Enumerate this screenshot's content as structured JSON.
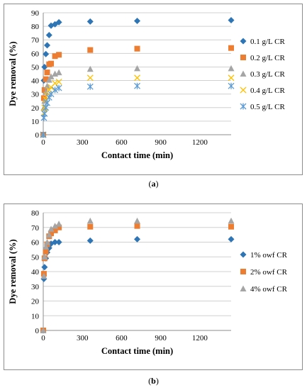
{
  "captions": {
    "a": "a",
    "b": "b"
  },
  "chart_data": [
    {
      "type": "scatter",
      "xlabel": "Contact time (min)",
      "ylabel": "Dye removal (%)",
      "xlim": [
        0,
        1440
      ],
      "ylim": [
        0,
        90
      ],
      "xticks": [
        0,
        300,
        600,
        900,
        1200
      ],
      "yticks": [
        0,
        10,
        20,
        30,
        40,
        50,
        60,
        70,
        80,
        90
      ],
      "grid": "horizontal",
      "legend": "right",
      "series": [
        {
          "name": "0.1 g/L CR",
          "marker": "diamond",
          "color": "#2e75b6",
          "x": [
            0,
            5,
            10,
            20,
            30,
            45,
            60,
            90,
            120,
            360,
            720,
            1440
          ],
          "y": [
            0,
            40,
            50,
            59.5,
            66,
            73.5,
            80.5,
            81.5,
            83,
            83.5,
            84,
            84.5
          ]
        },
        {
          "name": "0.2 g/L CR",
          "marker": "square",
          "color": "#ed7d31",
          "x": [
            0,
            5,
            10,
            20,
            30,
            45,
            60,
            90,
            120,
            360,
            720,
            1440
          ],
          "y": [
            0,
            27,
            33,
            41,
            46,
            52,
            52.5,
            58,
            59,
            62.5,
            63.5,
            64
          ]
        },
        {
          "name": "0.3 g/L CR",
          "marker": "triangle",
          "color": "#a5a5a5",
          "x": [
            0,
            5,
            10,
            20,
            30,
            45,
            60,
            90,
            120,
            360,
            720,
            1440
          ],
          "y": [
            0,
            20,
            25,
            31.5,
            36,
            40.5,
            43,
            45,
            46,
            48.5,
            49,
            49
          ]
        },
        {
          "name": "0.4 g/L CR",
          "marker": "x",
          "color": "#ffc000",
          "x": [
            0,
            5,
            10,
            20,
            30,
            45,
            60,
            90,
            120,
            360,
            720,
            1440
          ],
          "y": [
            0,
            16,
            20,
            26,
            29,
            33,
            35,
            38,
            39,
            42,
            42,
            42
          ]
        },
        {
          "name": "0.5 g/L CR",
          "marker": "star",
          "color": "#5b9bd5",
          "x": [
            0,
            5,
            10,
            20,
            30,
            45,
            60,
            90,
            120,
            360,
            720,
            1440
          ],
          "y": [
            0,
            12.5,
            15.5,
            20,
            23.5,
            27.5,
            30,
            33,
            34.5,
            35.5,
            36,
            36
          ]
        }
      ]
    },
    {
      "type": "scatter",
      "xlabel": "Contact time (min)",
      "ylabel": "Dye removal (%)",
      "xlim": [
        0,
        1440
      ],
      "ylim": [
        0,
        80
      ],
      "xticks": [
        0,
        300,
        600,
        900,
        1200
      ],
      "yticks": [
        0,
        10,
        20,
        30,
        40,
        50,
        60,
        70,
        80
      ],
      "grid": "horizontal",
      "legend": "right",
      "series": [
        {
          "name": "1% owf CR",
          "marker": "diamond",
          "color": "#2e75b6",
          "x": [
            0,
            5,
            10,
            20,
            30,
            45,
            60,
            90,
            120,
            360,
            720,
            1440
          ],
          "y": [
            0,
            35,
            43,
            49,
            53,
            56,
            59,
            60,
            60,
            61,
            62,
            62
          ]
        },
        {
          "name": "2% owf CR",
          "marker": "square",
          "color": "#ed7d31",
          "x": [
            0,
            5,
            10,
            20,
            30,
            45,
            60,
            90,
            120,
            360,
            720,
            1440
          ],
          "y": [
            0,
            38.5,
            49,
            53.5,
            58.5,
            64,
            66,
            68,
            70,
            70.5,
            71,
            70.5
          ]
        },
        {
          "name": "4% owf CR",
          "marker": "triangle",
          "color": "#a5a5a5",
          "x": [
            0,
            5,
            10,
            20,
            30,
            45,
            60,
            90,
            120,
            360,
            720,
            1440
          ],
          "y": [
            0,
            37,
            50,
            57,
            60,
            65,
            69,
            71,
            72.5,
            74.5,
            74.5,
            74.5
          ]
        }
      ]
    }
  ]
}
